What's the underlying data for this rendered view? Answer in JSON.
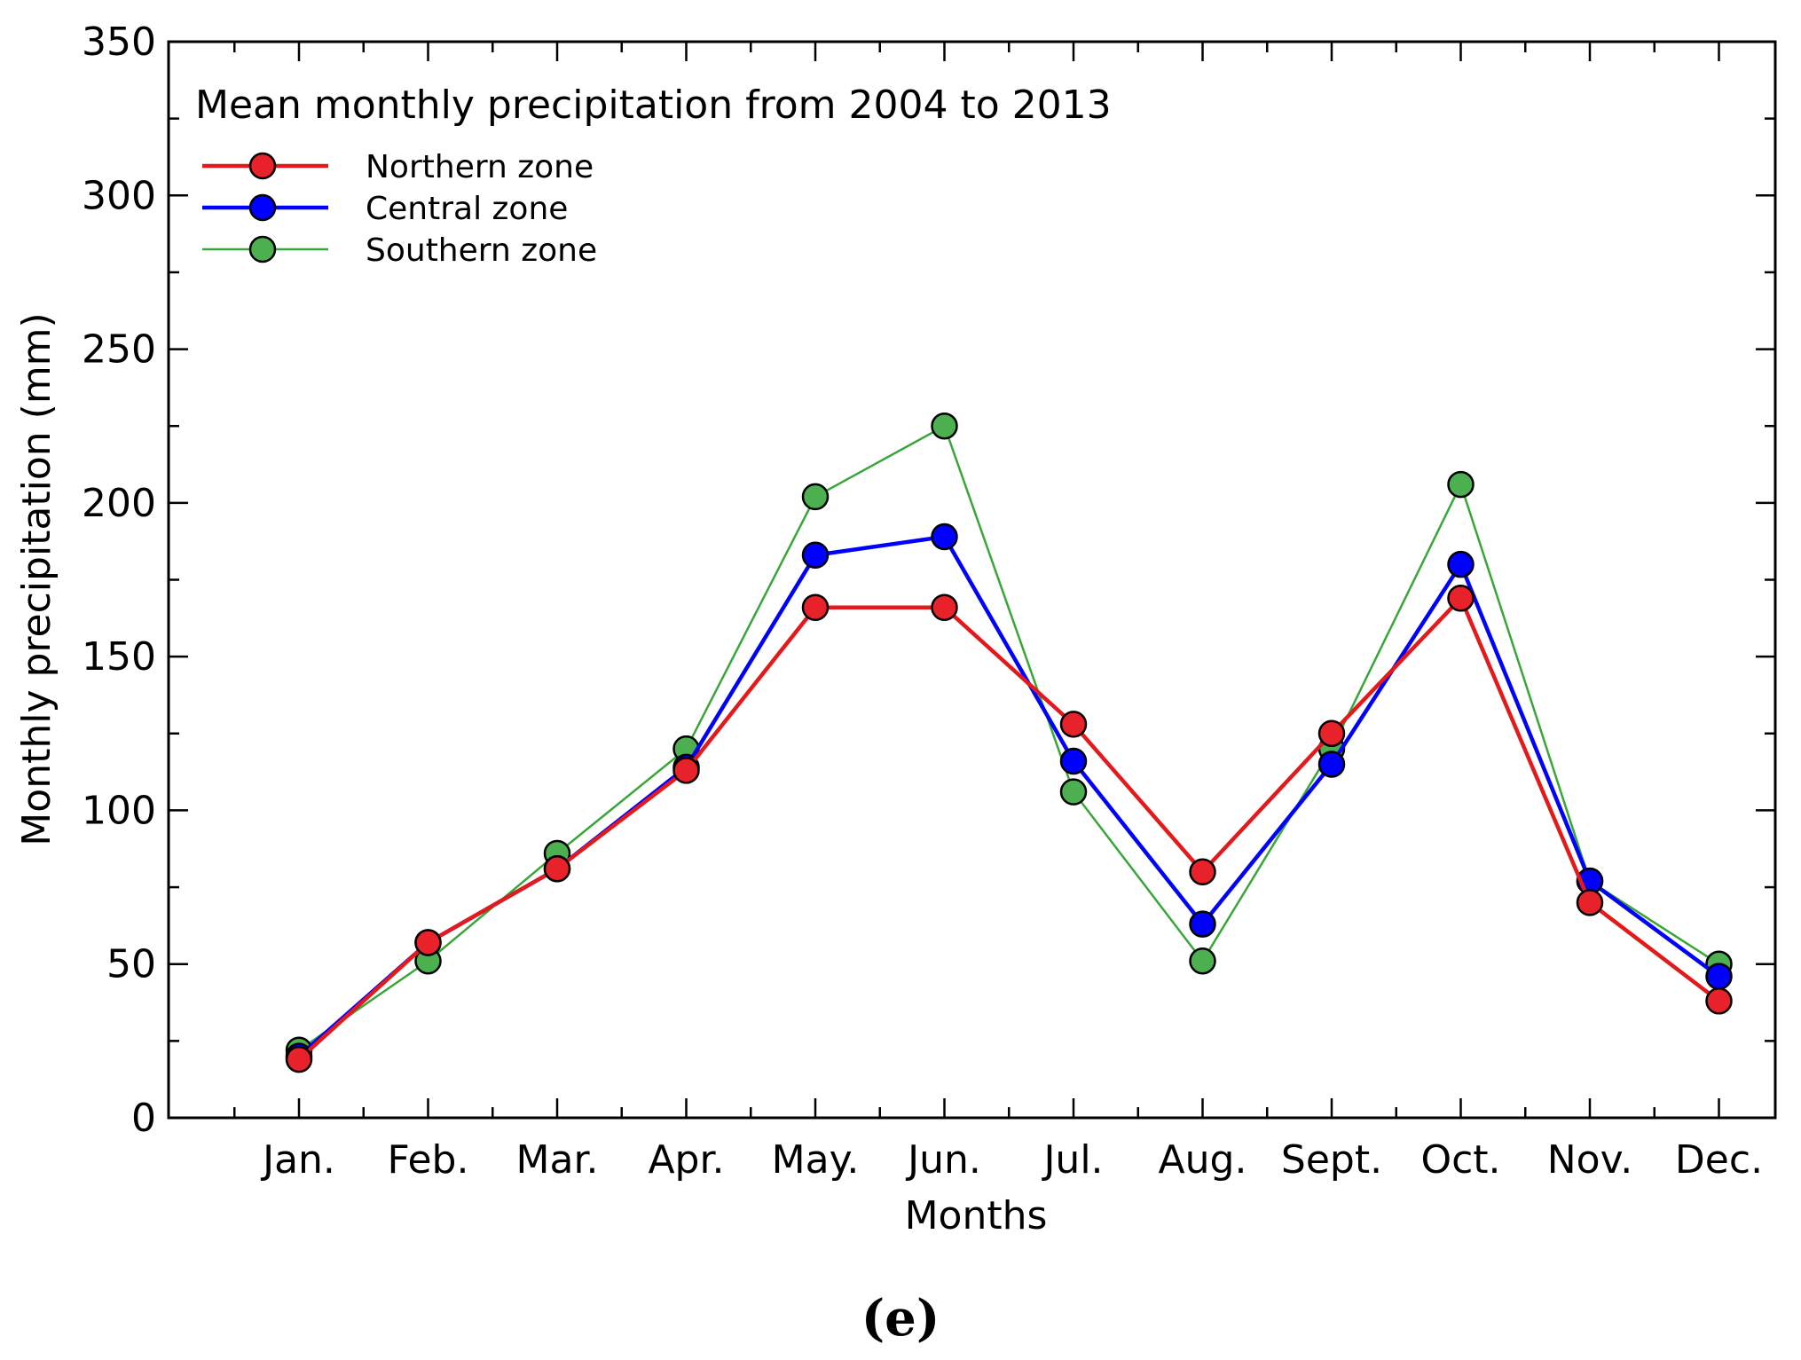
{
  "chart_data": {
    "type": "line",
    "title": "Mean monthly precipitation from 2004 to 2013",
    "xlabel": "Months",
    "ylabel": "Monthly precipitation (mm)",
    "categories": [
      "Jan.",
      "Feb.",
      "Mar.",
      "Apr.",
      "May.",
      "Jun.",
      "Jul.",
      "Aug.",
      "Sept.",
      "Oct.",
      "Nov.",
      "Dec."
    ],
    "ylim": [
      0,
      350
    ],
    "yticks": [
      0,
      50,
      100,
      150,
      200,
      250,
      300,
      350
    ],
    "grid": false,
    "legend_position": "top-left",
    "series": [
      {
        "name": "Southern zone",
        "color": "#3aa63a",
        "marker_color": "#4caf50",
        "values": [
          22,
          51,
          86,
          120,
          202,
          225,
          106,
          51,
          120,
          206,
          77,
          50
        ]
      },
      {
        "name": "Central zone",
        "color": "#0000ff",
        "marker_color": "#0000ff",
        "values": [
          20,
          57,
          81,
          114,
          183,
          189,
          116,
          63,
          115,
          180,
          77,
          46
        ]
      },
      {
        "name": "Northern zone",
        "color": "#e31a1c",
        "marker_color": "#e8222a",
        "values": [
          19,
          57,
          81,
          113,
          166,
          166,
          128,
          80,
          125,
          169,
          70,
          38
        ]
      }
    ],
    "legend_order": [
      "Northern zone",
      "Central zone",
      "Southern zone"
    ]
  },
  "panel_label": "(e)"
}
